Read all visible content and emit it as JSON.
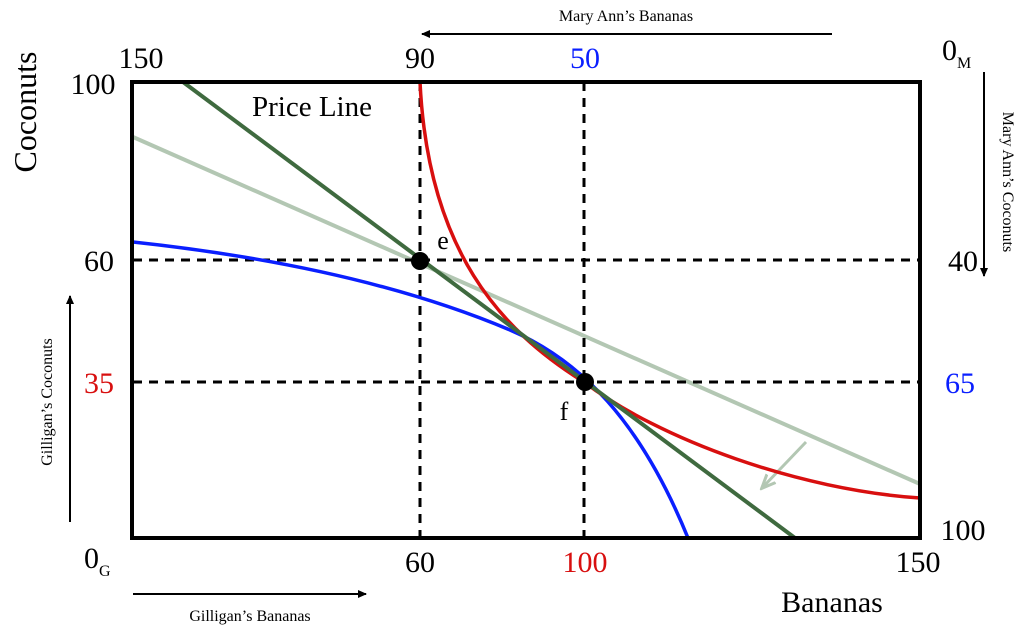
{
  "labels": {
    "mary_ann_bananas": "Mary Ann’s Bananas",
    "mary_ann_coconuts": "Mary Ann’s Coconuts",
    "gilligan_coconuts": "Gilligan’s Coconuts",
    "gilligan_bananas": "Gilligan’s Bananas",
    "coconuts": "Coconuts",
    "bananas": "Bananas",
    "price_line": "Price Line",
    "point_e": "e",
    "point_f": "f",
    "origin_g_main": "0",
    "origin_g_sub": "G",
    "origin_m_main": "0",
    "origin_m_sub": "M"
  },
  "ticks": {
    "top_150": "150",
    "top_90": "90",
    "top_50": "50",
    "left_100": "100",
    "left_60": "60",
    "left_35": "35",
    "bottom_60": "60",
    "bottom_100": "100",
    "bottom_150": "150",
    "right_40": "40",
    "right_65": "65",
    "right_100": "100"
  },
  "colors": {
    "frame": "#000000",
    "gilligan_indifference": "#0a1fff",
    "mary_ann_indifference": "#d80f0f",
    "price_line": "#3f6a3f",
    "old_price_line": "#b3c7b3",
    "red_label": "#d80f0f",
    "blue_label": "#0a1fff"
  },
  "chart_data": {
    "type": "edgeworth_box",
    "gilligan_axes": {
      "x": "Bananas",
      "y": "Coconuts",
      "x_range": [
        0,
        150
      ],
      "y_range": [
        0,
        100
      ]
    },
    "points": [
      {
        "name": "e",
        "gilligan_bananas": 60,
        "gilligan_coconuts": 60,
        "mary_ann_bananas": 90,
        "mary_ann_coconuts": 40
      },
      {
        "name": "f",
        "gilligan_bananas": 100,
        "gilligan_coconuts": 35,
        "mary_ann_bananas": 50,
        "mary_ann_coconuts": 65
      }
    ],
    "price_line": {
      "passes_through": [
        [
          60,
          60
        ],
        [
          100,
          35
        ]
      ]
    }
  }
}
